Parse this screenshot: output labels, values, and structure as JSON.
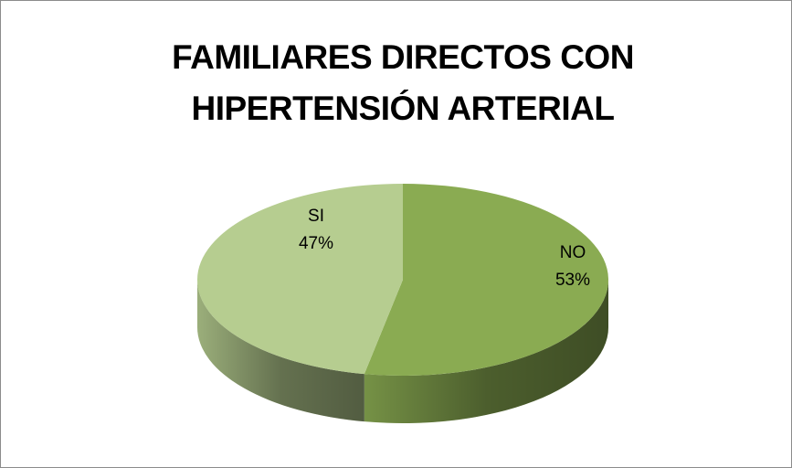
{
  "chart_data": {
    "type": "pie",
    "title": "FAMILIARES DIRECTOS CON HIPERTENSIÓN ARTERIAL",
    "categories": [
      "NO",
      "SI"
    ],
    "values": [
      53,
      47
    ],
    "value_labels": [
      "53%",
      "47%"
    ],
    "colors": [
      "#8aab52",
      "#b6cd90"
    ]
  }
}
